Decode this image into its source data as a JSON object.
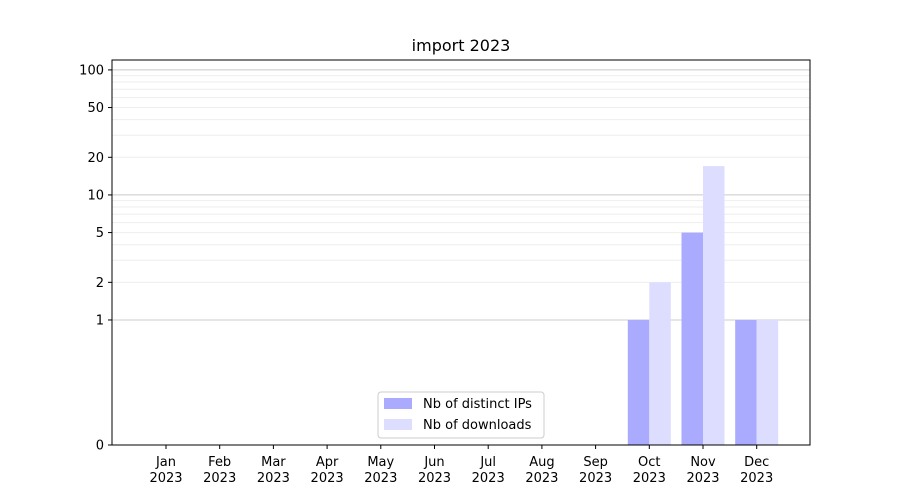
{
  "chart_data": {
    "type": "bar",
    "title": "import 2023",
    "xlabel": "",
    "ylabel": "",
    "yscale": "symlog",
    "ylim": [
      0,
      120
    ],
    "categories": [
      [
        "Jan",
        "2023"
      ],
      [
        "Feb",
        "2023"
      ],
      [
        "Mar",
        "2023"
      ],
      [
        "Apr",
        "2023"
      ],
      [
        "May",
        "2023"
      ],
      [
        "Jun",
        "2023"
      ],
      [
        "Jul",
        "2023"
      ],
      [
        "Aug",
        "2023"
      ],
      [
        "Sep",
        "2023"
      ],
      [
        "Oct",
        "2023"
      ],
      [
        "Nov",
        "2023"
      ],
      [
        "Dec",
        "2023"
      ]
    ],
    "yticks": [
      {
        "value": 0,
        "label": "0"
      },
      {
        "value": 1,
        "label": "1"
      },
      {
        "value": 2,
        "label": "2"
      },
      {
        "value": 5,
        "label": "5"
      },
      {
        "value": 10,
        "label": "10"
      },
      {
        "value": 20,
        "label": "20"
      },
      {
        "value": 50,
        "label": "50"
      },
      {
        "value": 100,
        "label": "100"
      }
    ],
    "series": [
      {
        "name": "Nb of distinct IPs",
        "color": "#aaaaff",
        "values": [
          0,
          0,
          0,
          0,
          0,
          0,
          0,
          0,
          0,
          1,
          5,
          1
        ]
      },
      {
        "name": "Nb of downloads",
        "color": "#ddddff",
        "values": [
          0,
          0,
          0,
          0,
          0,
          0,
          0,
          0,
          0,
          2,
          17,
          1
        ]
      }
    ],
    "grid": true,
    "legend": "bottom-center"
  }
}
